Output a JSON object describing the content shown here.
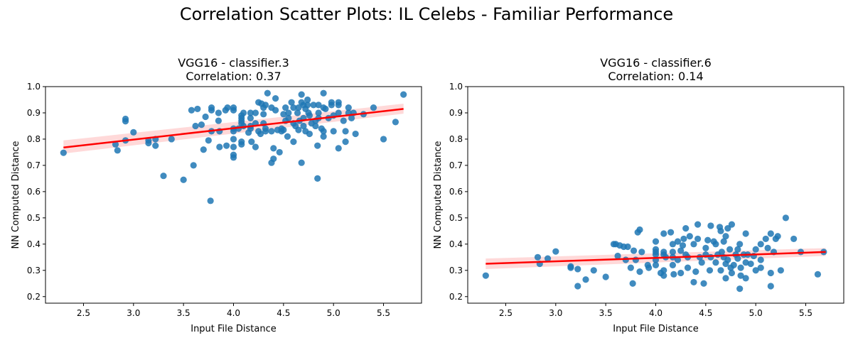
{
  "suptitle": "Correlation Scatter Plots: IL Celebs - Familiar Performance",
  "style": {
    "point_color": "#1f77b4",
    "line_color": "#ff0000",
    "band_color": "#ffb3b3"
  },
  "chart_data": [
    {
      "type": "scatter",
      "title_line1": "VGG16 - classifier.3",
      "title_line2": "Correlation: 0.37",
      "xlabel": "Input File Distance",
      "ylabel": "NN Computed Distance",
      "xlim": [
        2.12,
        5.88
      ],
      "ylim": [
        0.175,
        1.0
      ],
      "xticks": [
        2.5,
        3.0,
        3.5,
        4.0,
        4.5,
        5.0,
        5.5
      ],
      "yticks": [
        0.2,
        0.3,
        0.4,
        0.5,
        0.6,
        0.7,
        0.8,
        0.9,
        1.0
      ],
      "regression": {
        "x": [
          2.3,
          5.7
        ],
        "y": [
          0.768,
          0.915
        ],
        "ci_low": [
          0.745,
          0.897
        ],
        "ci_high": [
          0.795,
          0.935
        ]
      },
      "points": [
        [
          2.3,
          0.748
        ],
        [
          2.82,
          0.78
        ],
        [
          2.84,
          0.757
        ],
        [
          2.92,
          0.795
        ],
        [
          2.92,
          0.868
        ],
        [
          2.92,
          0.877
        ],
        [
          3.0,
          0.826
        ],
        [
          3.15,
          0.785
        ],
        [
          3.15,
          0.795
        ],
        [
          3.22,
          0.775
        ],
        [
          3.22,
          0.8
        ],
        [
          3.3,
          0.66
        ],
        [
          3.38,
          0.8
        ],
        [
          3.5,
          0.645
        ],
        [
          3.58,
          0.91
        ],
        [
          3.6,
          0.7
        ],
        [
          3.62,
          0.85
        ],
        [
          3.64,
          0.915
        ],
        [
          3.68,
          0.855
        ],
        [
          3.7,
          0.76
        ],
        [
          3.72,
          0.885
        ],
        [
          3.75,
          0.795
        ],
        [
          3.77,
          0.565
        ],
        [
          3.78,
          0.83
        ],
        [
          3.78,
          0.92
        ],
        [
          3.78,
          0.91
        ],
        [
          3.85,
          0.9
        ],
        [
          3.85,
          0.87
        ],
        [
          3.86,
          0.83
        ],
        [
          3.86,
          0.77
        ],
        [
          3.92,
          0.91
        ],
        [
          3.93,
          0.775
        ],
        [
          3.94,
          0.92
        ],
        [
          4.0,
          0.84
        ],
        [
          4.0,
          0.83
        ],
        [
          4.0,
          0.91
        ],
        [
          4.0,
          0.92
        ],
        [
          4.0,
          0.8
        ],
        [
          4.0,
          0.77
        ],
        [
          4.0,
          0.74
        ],
        [
          4.0,
          0.73
        ],
        [
          4.05,
          0.84
        ],
        [
          4.08,
          0.78
        ],
        [
          4.08,
          0.79
        ],
        [
          4.08,
          0.87
        ],
        [
          4.08,
          0.88
        ],
        [
          4.08,
          0.89
        ],
        [
          4.08,
          0.86
        ],
        [
          4.1,
          0.9
        ],
        [
          4.1,
          0.85
        ],
        [
          4.15,
          0.825
        ],
        [
          4.17,
          0.85
        ],
        [
          4.17,
          0.88
        ],
        [
          4.17,
          0.9
        ],
        [
          4.17,
          0.84
        ],
        [
          4.18,
          0.79
        ],
        [
          4.22,
          0.86
        ],
        [
          4.22,
          0.9
        ],
        [
          4.22,
          0.77
        ],
        [
          4.25,
          0.94
        ],
        [
          4.25,
          0.83
        ],
        [
          4.27,
          0.82
        ],
        [
          4.28,
          0.935
        ],
        [
          4.3,
          0.895
        ],
        [
          4.3,
          0.86
        ],
        [
          4.3,
          0.92
        ],
        [
          4.32,
          0.93
        ],
        [
          4.32,
          0.84
        ],
        [
          4.32,
          0.83
        ],
        [
          4.34,
          0.975
        ],
        [
          4.38,
          0.71
        ],
        [
          4.38,
          0.83
        ],
        [
          4.38,
          0.92
        ],
        [
          4.4,
          0.765
        ],
        [
          4.4,
          0.725
        ],
        [
          4.42,
          0.91
        ],
        [
          4.42,
          0.955
        ],
        [
          4.44,
          0.835
        ],
        [
          4.46,
          0.75
        ],
        [
          4.48,
          0.83
        ],
        [
          4.48,
          0.84
        ],
        [
          4.5,
          0.835
        ],
        [
          4.5,
          0.895
        ],
        [
          4.52,
          0.87
        ],
        [
          4.52,
          0.92
        ],
        [
          4.54,
          0.81
        ],
        [
          4.55,
          0.9
        ],
        [
          4.55,
          0.88
        ],
        [
          4.58,
          0.94
        ],
        [
          4.6,
          0.92
        ],
        [
          4.6,
          0.86
        ],
        [
          4.6,
          0.79
        ],
        [
          4.62,
          0.85
        ],
        [
          4.64,
          0.9
        ],
        [
          4.65,
          0.92
        ],
        [
          4.65,
          0.835
        ],
        [
          4.66,
          0.87
        ],
        [
          4.68,
          0.94
        ],
        [
          4.68,
          0.97
        ],
        [
          4.68,
          0.71
        ],
        [
          4.7,
          0.93
        ],
        [
          4.7,
          0.88
        ],
        [
          4.7,
          0.85
        ],
        [
          4.72,
          0.915
        ],
        [
          4.72,
          0.83
        ],
        [
          4.74,
          0.95
        ],
        [
          4.74,
          0.93
        ],
        [
          4.75,
          0.9
        ],
        [
          4.76,
          0.89
        ],
        [
          4.76,
          0.82
        ],
        [
          4.78,
          0.86
        ],
        [
          4.8,
          0.93
        ],
        [
          4.82,
          0.87
        ],
        [
          4.82,
          0.85
        ],
        [
          4.84,
          0.775
        ],
        [
          4.84,
          0.65
        ],
        [
          4.85,
          0.93
        ],
        [
          4.85,
          0.9
        ],
        [
          4.85,
          0.88
        ],
        [
          4.88,
          0.84
        ],
        [
          4.9,
          0.975
        ],
        [
          4.9,
          0.92
        ],
        [
          4.9,
          0.83
        ],
        [
          4.9,
          0.81
        ],
        [
          4.92,
          0.915
        ],
        [
          4.95,
          0.88
        ],
        [
          4.98,
          0.94
        ],
        [
          4.98,
          0.93
        ],
        [
          5.0,
          0.89
        ],
        [
          5.0,
          0.83
        ],
        [
          5.05,
          0.94
        ],
        [
          5.05,
          0.93
        ],
        [
          5.05,
          0.9
        ],
        [
          5.05,
          0.765
        ],
        [
          5.1,
          0.87
        ],
        [
          5.12,
          0.83
        ],
        [
          5.12,
          0.79
        ],
        [
          5.15,
          0.9
        ],
        [
          5.15,
          0.92
        ],
        [
          5.18,
          0.88
        ],
        [
          5.2,
          0.9
        ],
        [
          5.22,
          0.82
        ],
        [
          5.3,
          0.895
        ],
        [
          5.4,
          0.92
        ],
        [
          5.5,
          0.8
        ],
        [
          5.62,
          0.865
        ],
        [
          5.7,
          0.97
        ]
      ]
    },
    {
      "type": "scatter",
      "title_line1": "VGG16 - classifier.6",
      "title_line2": "Correlation: 0.14",
      "xlabel": "Input File Distance",
      "ylabel": "NN Computed Distance",
      "xlim": [
        2.12,
        5.88
      ],
      "ylim": [
        0.175,
        1.0
      ],
      "xticks": [
        2.5,
        3.0,
        3.5,
        4.0,
        4.5,
        5.0,
        5.5
      ],
      "yticks": [
        0.2,
        0.3,
        0.4,
        0.5,
        0.6,
        0.7,
        0.8,
        0.9,
        1.0
      ],
      "regression": {
        "x": [
          2.3,
          5.7
        ],
        "y": [
          0.325,
          0.37
        ],
        "ci_low": [
          0.305,
          0.355
        ],
        "ci_high": [
          0.345,
          0.385
        ]
      },
      "points": [
        [
          2.3,
          0.28
        ],
        [
          2.82,
          0.35
        ],
        [
          2.84,
          0.325
        ],
        [
          2.92,
          0.345
        ],
        [
          3.0,
          0.372
        ],
        [
          3.15,
          0.315
        ],
        [
          3.15,
          0.31
        ],
        [
          3.22,
          0.24
        ],
        [
          3.22,
          0.305
        ],
        [
          3.3,
          0.265
        ],
        [
          3.38,
          0.3
        ],
        [
          3.5,
          0.275
        ],
        [
          3.58,
          0.4
        ],
        [
          3.6,
          0.4
        ],
        [
          3.62,
          0.355
        ],
        [
          3.64,
          0.395
        ],
        [
          3.68,
          0.39
        ],
        [
          3.7,
          0.34
        ],
        [
          3.72,
          0.39
        ],
        [
          3.75,
          0.31
        ],
        [
          3.77,
          0.25
        ],
        [
          3.78,
          0.375
        ],
        [
          3.8,
          0.34
        ],
        [
          3.82,
          0.445
        ],
        [
          3.84,
          0.455
        ],
        [
          3.84,
          0.295
        ],
        [
          3.86,
          0.37
        ],
        [
          3.92,
          0.32
        ],
        [
          3.93,
          0.31
        ],
        [
          4.0,
          0.37
        ],
        [
          4.0,
          0.38
        ],
        [
          4.0,
          0.36
        ],
        [
          4.0,
          0.32
        ],
        [
          4.0,
          0.34
        ],
        [
          4.0,
          0.41
        ],
        [
          4.05,
          0.29
        ],
        [
          4.08,
          0.44
        ],
        [
          4.08,
          0.37
        ],
        [
          4.08,
          0.36
        ],
        [
          4.08,
          0.3
        ],
        [
          4.08,
          0.28
        ],
        [
          4.1,
          0.35
        ],
        [
          4.15,
          0.445
        ],
        [
          4.17,
          0.4
        ],
        [
          4.17,
          0.37
        ],
        [
          4.17,
          0.35
        ],
        [
          4.17,
          0.32
        ],
        [
          4.18,
          0.285
        ],
        [
          4.22,
          0.41
        ],
        [
          4.22,
          0.34
        ],
        [
          4.25,
          0.375
        ],
        [
          4.25,
          0.29
        ],
        [
          4.27,
          0.395
        ],
        [
          4.28,
          0.42
        ],
        [
          4.3,
          0.46
        ],
        [
          4.3,
          0.36
        ],
        [
          4.32,
          0.35
        ],
        [
          4.32,
          0.31
        ],
        [
          4.34,
          0.43
        ],
        [
          4.38,
          0.4
        ],
        [
          4.38,
          0.255
        ],
        [
          4.4,
          0.295
        ],
        [
          4.42,
          0.42
        ],
        [
          4.42,
          0.475
        ],
        [
          4.44,
          0.35
        ],
        [
          4.46,
          0.33
        ],
        [
          4.48,
          0.25
        ],
        [
          4.5,
          0.385
        ],
        [
          4.5,
          0.36
        ],
        [
          4.52,
          0.415
        ],
        [
          4.54,
          0.3
        ],
        [
          4.55,
          0.47
        ],
        [
          4.55,
          0.35
        ],
        [
          4.58,
          0.41
        ],
        [
          4.6,
          0.33
        ],
        [
          4.6,
          0.4
        ],
        [
          4.62,
          0.36
        ],
        [
          4.64,
          0.465
        ],
        [
          4.65,
          0.45
        ],
        [
          4.65,
          0.3
        ],
        [
          4.66,
          0.37
        ],
        [
          4.68,
          0.41
        ],
        [
          4.68,
          0.35
        ],
        [
          4.7,
          0.43
        ],
        [
          4.7,
          0.325
        ],
        [
          4.7,
          0.27
        ],
        [
          4.72,
          0.46
        ],
        [
          4.72,
          0.34
        ],
        [
          4.74,
          0.38
        ],
        [
          4.75,
          0.31
        ],
        [
          4.76,
          0.475
        ],
        [
          4.76,
          0.29
        ],
        [
          4.78,
          0.32
        ],
        [
          4.8,
          0.36
        ],
        [
          4.82,
          0.38
        ],
        [
          4.82,
          0.345
        ],
        [
          4.84,
          0.23
        ],
        [
          4.84,
          0.4
        ],
        [
          4.85,
          0.31
        ],
        [
          4.85,
          0.28
        ],
        [
          4.88,
          0.36
        ],
        [
          4.9,
          0.44
        ],
        [
          4.9,
          0.33
        ],
        [
          4.9,
          0.27
        ],
        [
          4.92,
          0.36
        ],
        [
          4.95,
          0.325
        ],
        [
          4.98,
          0.355
        ],
        [
          5.0,
          0.3
        ],
        [
          5.0,
          0.38
        ],
        [
          5.05,
          0.4
        ],
        [
          5.05,
          0.34
        ],
        [
          5.05,
          0.31
        ],
        [
          5.1,
          0.42
        ],
        [
          5.12,
          0.385
        ],
        [
          5.15,
          0.44
        ],
        [
          5.15,
          0.29
        ],
        [
          5.15,
          0.24
        ],
        [
          5.18,
          0.37
        ],
        [
          5.2,
          0.42
        ],
        [
          5.22,
          0.43
        ],
        [
          5.25,
          0.3
        ],
        [
          5.3,
          0.5
        ],
        [
          5.38,
          0.42
        ],
        [
          5.45,
          0.37
        ],
        [
          5.62,
          0.285
        ],
        [
          5.68,
          0.37
        ]
      ]
    }
  ]
}
